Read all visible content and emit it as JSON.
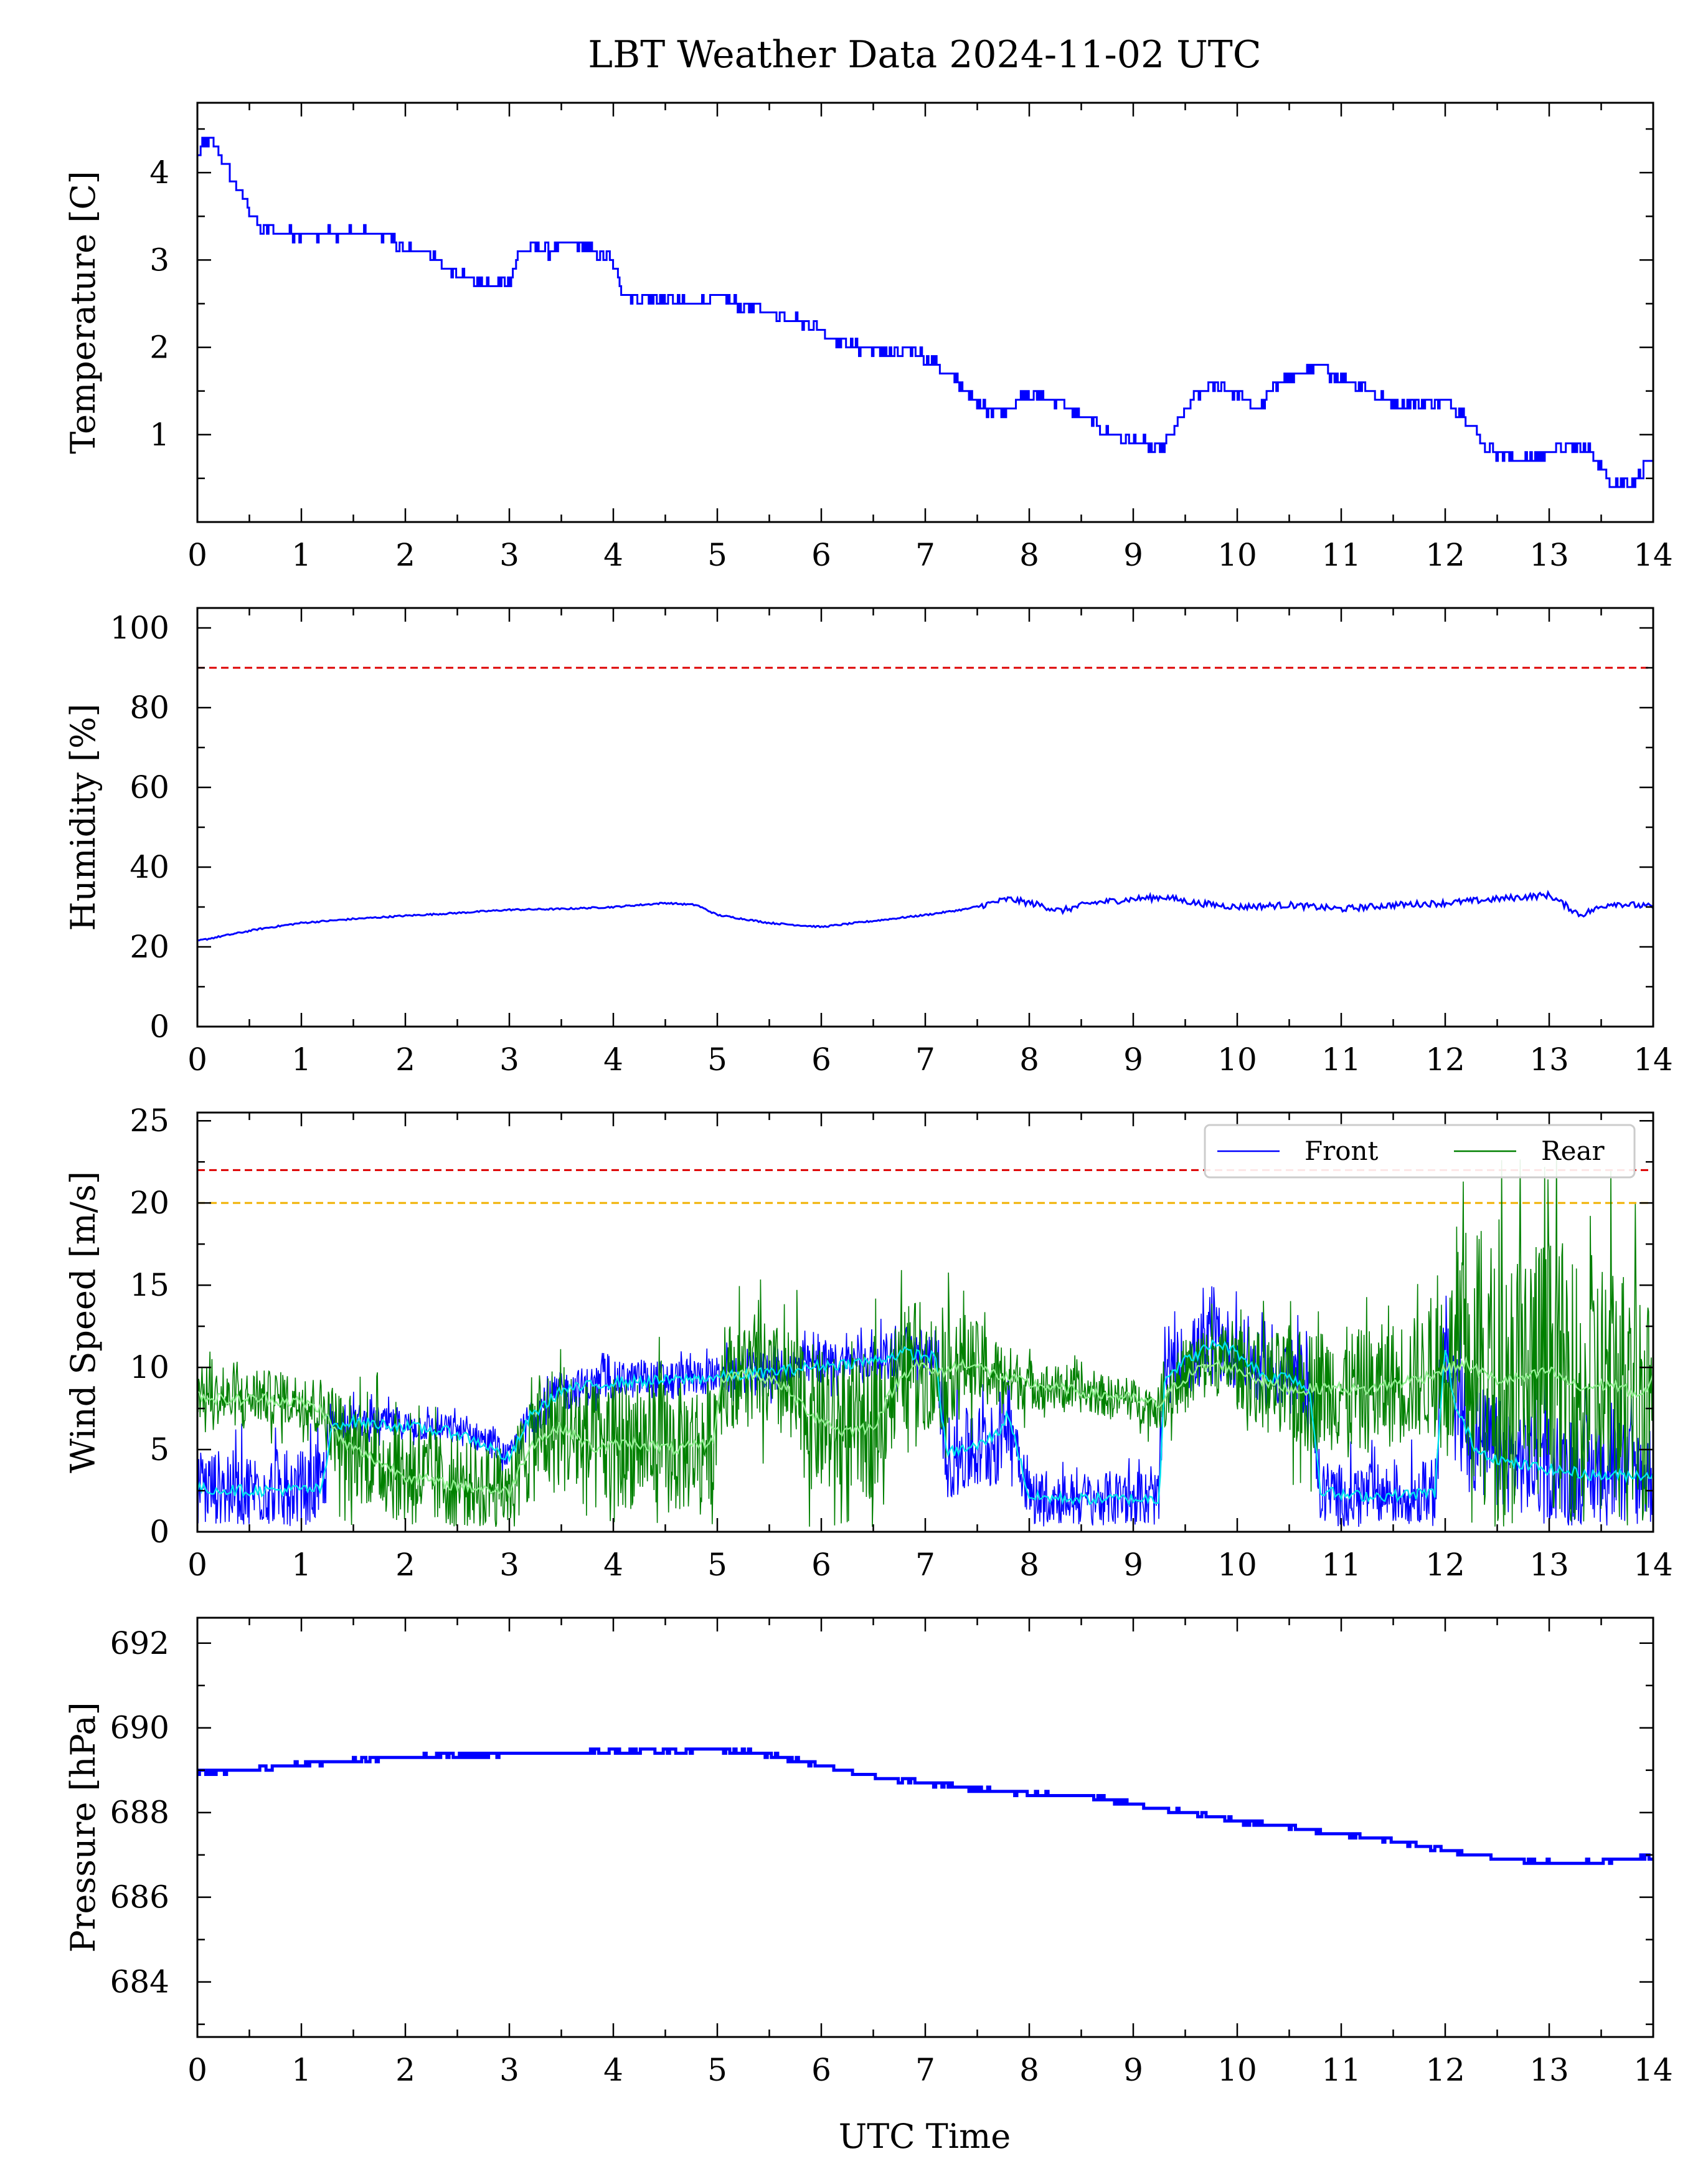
{
  "figure": {
    "title": "LBT Weather Data 2024-11-02 UTC",
    "xlabel": "UTC Time",
    "x_ticks": [
      "0",
      "1",
      "2",
      "3",
      "4",
      "5",
      "6",
      "7",
      "8",
      "9",
      "10",
      "11",
      "12",
      "13",
      "14"
    ]
  },
  "colors": {
    "front": "#0000ff",
    "rear": "#008000",
    "front_smooth": "#00e5ee",
    "rear_smooth": "#90ee90",
    "limit_red": "#dd0000",
    "limit_orange": "#f0b000"
  },
  "chart_data": [
    {
      "type": "line",
      "ylabel": "Temperature [C]",
      "xlim": [
        0,
        14
      ],
      "ylim": [
        0,
        4.8
      ],
      "y_ticks": [
        1,
        2,
        3,
        4
      ],
      "y_tick_labels": [
        "1",
        "2",
        "3",
        "4"
      ],
      "series": [
        {
          "color": "#0000ff",
          "x": [
            0,
            0.1,
            0.2,
            0.3,
            0.4,
            0.5,
            0.6,
            0.7,
            0.8,
            1.0,
            1.2,
            1.4,
            1.6,
            1.8,
            2.0,
            2.2,
            2.4,
            2.6,
            2.8,
            3.0,
            3.1,
            3.2,
            3.4,
            3.6,
            3.8,
            3.95,
            4.1,
            4.4,
            4.7,
            5.0,
            5.2,
            5.5,
            5.8,
            6.0,
            6.3,
            6.6,
            6.9,
            7.1,
            7.3,
            7.5,
            7.7,
            7.9,
            8.1,
            8.3,
            8.5,
            8.7,
            8.9,
            9.1,
            9.25,
            9.4,
            9.6,
            9.8,
            10.0,
            10.2,
            10.4,
            10.6,
            10.8,
            11.0,
            11.2,
            11.4,
            11.6,
            11.8,
            12.0,
            12.2,
            12.4,
            12.6,
            12.8,
            13.0,
            13.2,
            13.4,
            13.6,
            13.8,
            13.95,
            14.0
          ],
          "y": [
            4.2,
            4.4,
            4.25,
            4.0,
            3.8,
            3.55,
            3.35,
            3.35,
            3.3,
            3.3,
            3.3,
            3.3,
            3.3,
            3.3,
            3.1,
            3.1,
            2.9,
            2.8,
            2.7,
            2.75,
            3.1,
            3.15,
            3.1,
            3.2,
            3.1,
            3.05,
            2.6,
            2.55,
            2.5,
            2.55,
            2.5,
            2.4,
            2.3,
            2.2,
            2.0,
            1.95,
            1.95,
            1.8,
            1.6,
            1.35,
            1.25,
            1.4,
            1.45,
            1.35,
            1.2,
            1.05,
            0.95,
            0.9,
            0.8,
            1.1,
            1.45,
            1.6,
            1.45,
            1.3,
            1.6,
            1.7,
            1.75,
            1.65,
            1.55,
            1.4,
            1.35,
            1.35,
            1.4,
            1.2,
            0.85,
            0.75,
            0.7,
            0.8,
            0.85,
            0.8,
            0.45,
            0.45,
            0.7,
            0.6
          ]
        }
      ]
    },
    {
      "type": "line",
      "ylabel": "Humidity [%]",
      "xlim": [
        0,
        14
      ],
      "ylim": [
        0,
        105
      ],
      "y_ticks": [
        0,
        20,
        40,
        60,
        80,
        100
      ],
      "y_tick_labels": [
        "0",
        "20",
        "40",
        "60",
        "80",
        "100"
      ],
      "threshold_lines": [
        {
          "y": 90,
          "color": "#dd0000"
        }
      ],
      "series": [
        {
          "color": "#0000ff",
          "x": [
            0,
            0.3,
            0.6,
            1.0,
            1.5,
            2.0,
            2.5,
            3.0,
            3.5,
            4.0,
            4.5,
            4.8,
            5.0,
            5.5,
            6.0,
            6.5,
            7.0,
            7.4,
            7.8,
            8.1,
            8.3,
            8.6,
            9.0,
            9.3,
            9.6,
            10.0,
            10.5,
            11.0,
            11.5,
            12.0,
            12.5,
            13.0,
            13.3,
            13.6,
            14.0
          ],
          "y": [
            21.5,
            23,
            24.5,
            26,
            27,
            27.8,
            28.5,
            29.3,
            29.5,
            30,
            31,
            30.5,
            28,
            26,
            25,
            26.5,
            28,
            29.5,
            32,
            30.5,
            29,
            31,
            32,
            32.5,
            31,
            30,
            30.5,
            29.5,
            30.5,
            31,
            32,
            33,
            28,
            31,
            30
          ]
        }
      ]
    },
    {
      "type": "line",
      "ylabel": "Wind Speed [m/s]",
      "xlim": [
        0,
        14
      ],
      "ylim": [
        0,
        25.5
      ],
      "y_ticks": [
        0,
        5,
        10,
        15,
        20,
        25
      ],
      "y_tick_labels": [
        "0",
        "5",
        "10",
        "15",
        "20",
        "25"
      ],
      "threshold_lines": [
        {
          "y": 22,
          "color": "#dd0000"
        },
        {
          "y": 20,
          "color": "#f0b000"
        }
      ],
      "legend": {
        "position": "top-right",
        "entries": [
          "Front",
          "Rear"
        ]
      },
      "series": [
        {
          "name": "Front",
          "color": "#0000ff",
          "x": [
            0,
            0.5,
            1.2,
            1.3,
            1.5,
            2.0,
            2.5,
            2.8,
            3.0,
            3.2,
            3.5,
            4.0,
            4.5,
            5.0,
            5.5,
            6.0,
            6.5,
            6.8,
            7.1,
            7.2,
            7.5,
            7.7,
            7.8,
            8.0,
            8.5,
            9.0,
            9.25,
            9.3,
            9.5,
            9.8,
            10.0,
            10.3,
            10.5,
            10.7,
            10.8,
            11.0,
            11.5,
            11.9,
            12.0,
            12.1,
            12.3,
            12.6,
            13.0,
            13.5,
            14.0
          ],
          "y": [
            2.8,
            2.6,
            2.7,
            6.5,
            6.8,
            6.5,
            6.2,
            5.5,
            4.5,
            7.0,
            8.5,
            9.2,
            9.3,
            9.5,
            9.8,
            10.2,
            10.5,
            11.0,
            10.8,
            4.5,
            5.0,
            5.5,
            7.5,
            2.2,
            2.0,
            2.1,
            2.0,
            9.5,
            10.5,
            11.5,
            11.0,
            9.5,
            9.8,
            9.0,
            2.5,
            2.2,
            2.3,
            2.5,
            11.5,
            8.0,
            5.5,
            4.5,
            4.0,
            3.5,
            3.5
          ],
          "amplitude": [
            1.8,
            1.8,
            1.8,
            0.8,
            0.8,
            0.7,
            0.7,
            0.7,
            0.6,
            1.0,
            1.0,
            0.9,
            0.9,
            0.9,
            1.0,
            1.0,
            1.0,
            1.2,
            1.2,
            2.0,
            2.2,
            2.2,
            2.0,
            1.3,
            1.3,
            1.3,
            1.3,
            1.5,
            1.8,
            2.0,
            1.8,
            1.6,
            1.6,
            1.8,
            1.6,
            1.5,
            1.5,
            1.5,
            2.5,
            3.0,
            2.8,
            2.6,
            2.6,
            2.5,
            2.5
          ],
          "smoothed": [
            2.6,
            2.5,
            2.6,
            6.5,
            6.7,
            6.4,
            6.0,
            5.2,
            4.4,
            7.0,
            8.6,
            9.1,
            9.2,
            9.4,
            9.7,
            10.1,
            10.4,
            10.9,
            10.6,
            4.8,
            5.2,
            6.0,
            7.2,
            2.1,
            2.0,
            2.0,
            2.0,
            9.4,
            10.4,
            11.5,
            10.9,
            9.3,
            9.6,
            8.5,
            2.6,
            2.2,
            2.2,
            2.4,
            11.2,
            7.5,
            5.0,
            4.2,
            3.8,
            3.4,
            3.5
          ]
        },
        {
          "name": "Rear",
          "color": "#008000",
          "x": [
            0,
            0.3,
            0.6,
            1.0,
            1.2,
            1.4,
            1.7,
            2.0,
            2.4,
            2.8,
            3.0,
            3.2,
            3.5,
            3.8,
            4.2,
            4.6,
            4.95,
            5.05,
            5.3,
            5.6,
            5.9,
            6.2,
            6.5,
            6.7,
            6.9,
            7.1,
            7.4,
            7.7,
            8.0,
            8.5,
            9.0,
            9.25,
            9.4,
            9.6,
            9.8,
            10.0,
            10.3,
            10.6,
            10.9,
            11.2,
            11.5,
            11.8,
            12.0,
            12.2,
            12.5,
            12.8,
            13.0,
            13.3,
            13.6,
            13.9,
            14.0
          ],
          "y": [
            8.5,
            8.0,
            8.2,
            8.0,
            7.5,
            5.5,
            4.5,
            3.5,
            3.0,
            2.8,
            2.5,
            5.5,
            6.5,
            5.0,
            5.5,
            5.0,
            5.5,
            9.5,
            9.8,
            9.0,
            7.0,
            6.0,
            6.5,
            9.0,
            10.5,
            9.5,
            10.5,
            9.5,
            9.0,
            8.5,
            8.0,
            7.5,
            9.0,
            10.0,
            10.5,
            10.0,
            9.0,
            8.5,
            8.8,
            8.5,
            9.0,
            9.5,
            10.0,
            10.5,
            9.0,
            9.5,
            10.0,
            8.5,
            9.0,
            8.0,
            9.5
          ],
          "amplitude": [
            1.3,
            1.3,
            1.3,
            1.3,
            1.5,
            2.5,
            2.5,
            2.5,
            2.2,
            2.0,
            2.0,
            3.0,
            3.2,
            3.2,
            3.2,
            3.2,
            3.0,
            2.5,
            2.5,
            2.8,
            3.5,
            3.5,
            3.5,
            3.0,
            3.0,
            3.0,
            2.2,
            1.8,
            1.2,
            1.0,
            1.0,
            1.0,
            1.8,
            1.8,
            1.8,
            1.8,
            2.5,
            3.0,
            3.0,
            3.0,
            3.0,
            3.0,
            3.5,
            6.5,
            7.0,
            7.0,
            6.5,
            6.5,
            6.5,
            6.0,
            6.0
          ],
          "smoothed": [
            8.3,
            8.0,
            8.1,
            7.9,
            7.4,
            5.4,
            4.4,
            3.4,
            2.9,
            2.6,
            2.4,
            5.3,
            6.4,
            5.1,
            5.4,
            5.0,
            5.4,
            9.4,
            9.7,
            9.0,
            7.2,
            6.1,
            6.4,
            8.8,
            10.3,
            9.6,
            10.3,
            9.5,
            9.0,
            8.5,
            8.1,
            7.7,
            8.9,
            9.8,
            10.2,
            9.9,
            9.0,
            8.6,
            8.8,
            8.6,
            9.0,
            9.4,
            9.9,
            10.2,
            9.2,
            9.4,
            9.8,
            8.7,
            9.0,
            8.2,
            9.3
          ]
        }
      ]
    },
    {
      "type": "line",
      "ylabel": "Pressure [hPa]",
      "xlim": [
        0,
        14
      ],
      "ylim": [
        682.7,
        692.6
      ],
      "y_ticks": [
        684,
        686,
        688,
        690,
        692
      ],
      "y_tick_labels": [
        "684",
        "686",
        "688",
        "690",
        "692"
      ],
      "series": [
        {
          "color": "#0000ff",
          "x": [
            0,
            0.5,
            1.0,
            1.5,
            2.0,
            2.5,
            3.0,
            3.5,
            4.0,
            4.5,
            5.0,
            5.4,
            5.8,
            6.2,
            6.6,
            7.0,
            7.5,
            8.0,
            8.5,
            9.0,
            9.5,
            10.0,
            10.5,
            11.0,
            11.5,
            12.0,
            12.4,
            12.8,
            13.1,
            13.5,
            14.0
          ],
          "y": [
            688.95,
            689.0,
            689.15,
            689.25,
            689.3,
            689.35,
            689.4,
            689.4,
            689.45,
            689.45,
            689.5,
            689.4,
            689.2,
            689.0,
            688.8,
            688.7,
            688.55,
            688.45,
            688.4,
            688.2,
            688.0,
            687.8,
            687.65,
            687.5,
            687.35,
            687.1,
            686.95,
            686.85,
            686.8,
            686.85,
            686.95
          ]
        }
      ]
    }
  ]
}
